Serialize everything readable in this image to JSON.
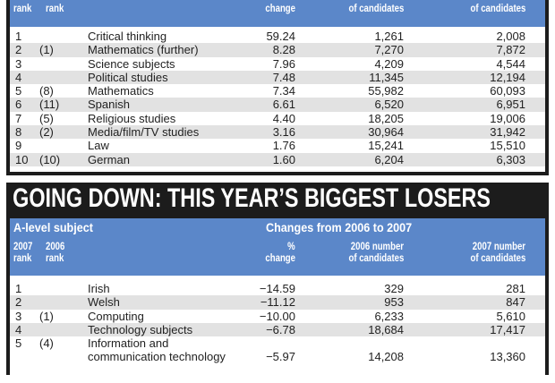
{
  "gainers": {
    "header": {
      "rank_2007": "rank",
      "rank_2006": "rank",
      "pct": "change",
      "n2006": "of candidates",
      "n2007": "of candidates"
    },
    "rows": [
      {
        "rank": "1",
        "prev": "",
        "subject": "Critical thinking",
        "pct": "59.24",
        "n2006": "1,261",
        "n2007": "2,008"
      },
      {
        "rank": "2",
        "prev": "(1)",
        "subject": "Mathematics (further)",
        "pct": "8.28",
        "n2006": "7,270",
        "n2007": "7,872"
      },
      {
        "rank": "3",
        "prev": "",
        "subject": "Science subjects",
        "pct": "7.96",
        "n2006": "4,209",
        "n2007": "4,544"
      },
      {
        "rank": "4",
        "prev": "",
        "subject": "Political studies",
        "pct": "7.48",
        "n2006": "11,345",
        "n2007": "12,194"
      },
      {
        "rank": "5",
        "prev": "(8)",
        "subject": "Mathematics",
        "pct": "7.34",
        "n2006": "55,982",
        "n2007": "60,093"
      },
      {
        "rank": "6",
        "prev": "(11)",
        "subject": "Spanish",
        "pct": "6.61",
        "n2006": "6,520",
        "n2007": "6,951"
      },
      {
        "rank": "7",
        "prev": "(5)",
        "subject": "Religious studies",
        "pct": "4.40",
        "n2006": "18,205",
        "n2007": "19,006"
      },
      {
        "rank": "8",
        "prev": "(2)",
        "subject": "Media/film/TV studies",
        "pct": "3.16",
        "n2006": "30,964",
        "n2007": "31,942"
      },
      {
        "rank": "9",
        "prev": "",
        "subject": "Law",
        "pct": "1.76",
        "n2006": "15,241",
        "n2007": "15,510"
      },
      {
        "rank": "10",
        "prev": "(10)",
        "subject": "German",
        "pct": "1.60",
        "n2006": "6,204",
        "n2007": "6,303"
      }
    ]
  },
  "losers": {
    "title": "GOING DOWN: THIS YEAR’S BIGGEST LOSERS",
    "subject_label": "A-level subject",
    "changes_label": "Changes from 2006 to 2007",
    "header": {
      "y2007": "2007",
      "rank_2007": "rank",
      "y2006": "2006",
      "rank_2006": "rank",
      "pct_sym": "%",
      "pct": "change",
      "n2006a": "2006 number",
      "n2006b": "of candidates",
      "n2007a": "2007 number",
      "n2007b": "of candidates"
    },
    "rows": [
      {
        "rank": "1",
        "prev": "",
        "subject": "Irish",
        "pct": "−14.59",
        "n2006": "329",
        "n2007": "281"
      },
      {
        "rank": "2",
        "prev": "",
        "subject": "Welsh",
        "pct": "−11.12",
        "n2006": "953",
        "n2007": "847"
      },
      {
        "rank": "3",
        "prev": "(1)",
        "subject": "Computing",
        "pct": "−10.00",
        "n2006": "6,233",
        "n2007": "5,610"
      },
      {
        "rank": "4",
        "prev": "",
        "subject": "Technology subjects",
        "pct": "−6.78",
        "n2006": "18,684",
        "n2007": "17,417"
      },
      {
        "rank": "5",
        "prev": "(4)",
        "subject": "Information and",
        "subject2": "communication technology",
        "pct": "−5.97",
        "n2006": "14,208",
        "n2007": "13,360"
      }
    ]
  }
}
